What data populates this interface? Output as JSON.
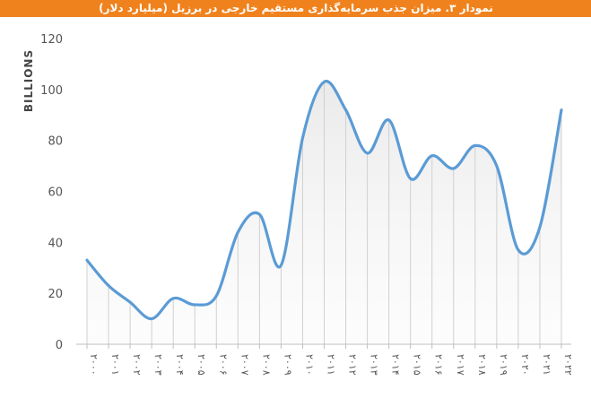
{
  "chart_data": {
    "type": "line",
    "title": "نمودار ۳. میزان جذب سرمایه‌گذاری مستقیم خارجی در برزیل (میلیارد دلار)",
    "y_label": "BILLIONS",
    "categories": [
      "۲۰۰۰",
      "۲۰۰۱",
      "۲۰۰۲",
      "۲۰۰۳",
      "۲۰۰۴",
      "۲۰۰۵",
      "۲۰۰۶",
      "۲۰۰۷",
      "۲۰۰۸",
      "۲۰۰۹",
      "۲۰۱۰",
      "۲۰۱۱",
      "۲۰۱۲",
      "۲۰۱۳",
      "۲۰۱۴",
      "۲۰۱۵",
      "۲۰۱۶",
      "۲۰۱۷",
      "۲۰۱۸",
      "۲۰۱۹",
      "۲۰۲۰",
      "۲۰۲۱",
      "۲۰۲۲"
    ],
    "values": [
      33,
      23,
      16.5,
      10,
      18,
      15.5,
      19,
      44,
      51,
      31,
      81,
      103,
      92,
      75,
      88,
      65,
      74,
      69,
      78,
      70,
      37,
      46,
      92
    ],
    "color": "#5b9bd5",
    "ylim": [
      0,
      120
    ],
    "yticks": [
      0,
      20,
      40,
      60,
      80,
      100,
      120
    ]
  }
}
